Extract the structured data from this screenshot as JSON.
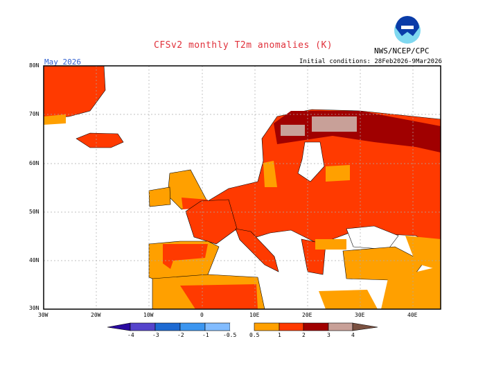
{
  "title": "CFSv2 monthly T2m anomalies (K)",
  "agency": "NWS/NCEP/CPC",
  "initial_conditions": "Initial conditions: 28Feb2026-9Mar2026",
  "forecast_month": "May 2026",
  "logo": "noaa-logo",
  "map": {
    "region": "Europe",
    "lat_labels": [
      "80N",
      "70N",
      "60N",
      "50N",
      "40N",
      "30N"
    ],
    "lon_labels": [
      "30W",
      "20W",
      "10W",
      "0",
      "10E",
      "20E",
      "30E",
      "40E"
    ],
    "grid": true
  },
  "colorbar": {
    "labels": [
      "-4",
      "-3",
      "-2",
      "-1",
      "-0.5",
      "0.5",
      "1",
      "2",
      "3",
      "4"
    ],
    "colors": [
      "#2a0aa0",
      "#5544cc",
      "#1e6ad2",
      "#3c96f0",
      "#82bcff",
      "#ffffff",
      "#ffa000",
      "#ff3a00",
      "#a00000",
      "#c8a098",
      "#7a5040"
    ]
  }
}
